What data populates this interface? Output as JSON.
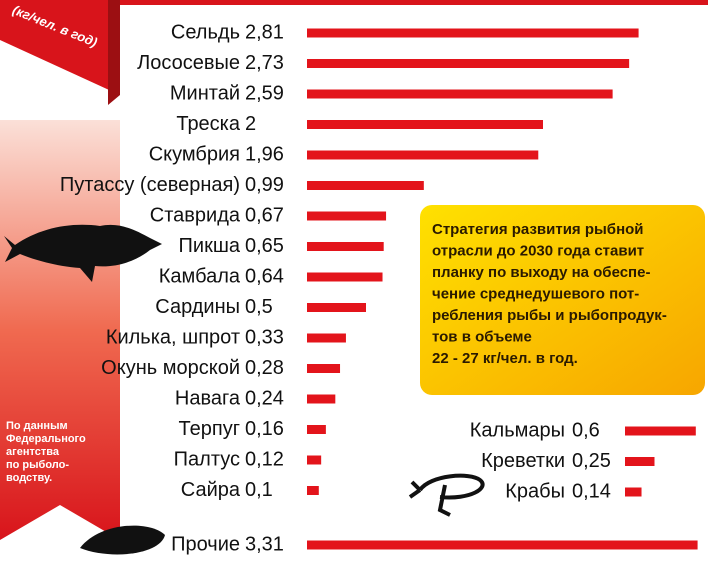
{
  "banner": "(кг/чел. в год)",
  "callout": [
    "Стратегия развития рыбной",
    "отрасли до 2030 года   ставит",
    "планку по выходу на обеспе-",
    "чение среднедушевого пот-",
    "ребления рыбы и рыбопродук-",
    "тов в объеме",
    "22 - 27 кг/чел. в год."
  ],
  "source": [
    "По данным",
    "Федерального",
    "агентства",
    "по рыболо-",
    "водству."
  ],
  "chart_data": [
    {
      "type": "bar",
      "orientation": "horizontal",
      "color": "#e3141b",
      "categories": [
        "Сельдь",
        "Лососевые",
        "Минтай",
        "Треска",
        "Скумбрия",
        "Путассу (северная)",
        "Ставрида",
        "Пикша",
        "Камбала",
        "Сардины",
        "Килька, шпрот",
        "Окунь морской",
        "Навага",
        "Терпуг",
        "Палтус",
        "Сайра"
      ],
      "values": [
        2.81,
        2.73,
        2.59,
        2,
        1.96,
        0.99,
        0.67,
        0.65,
        0.64,
        0.5,
        0.33,
        0.28,
        0.24,
        0.16,
        0.12,
        0.1
      ],
      "value_labels": [
        "2,81",
        "2,73",
        "2,59",
        "2",
        "1,96",
        "0,99",
        "0,67",
        "0,65",
        "0,64",
        "0,5",
        "0,33",
        "0,28",
        "0,24",
        "0,16",
        "0,12",
        "0,1"
      ]
    },
    {
      "type": "bar",
      "orientation": "horizontal",
      "color": "#e3141b",
      "categories": [
        "Кальмары",
        "Креветки",
        "Крабы"
      ],
      "values": [
        0.6,
        0.25,
        0.14
      ],
      "value_labels": [
        "0,6",
        "0,25",
        "0,14"
      ]
    },
    {
      "type": "bar",
      "orientation": "horizontal",
      "color": "#e3141b",
      "categories": [
        "Прочие"
      ],
      "values": [
        3.31
      ],
      "value_labels": [
        "3,31"
      ]
    }
  ]
}
